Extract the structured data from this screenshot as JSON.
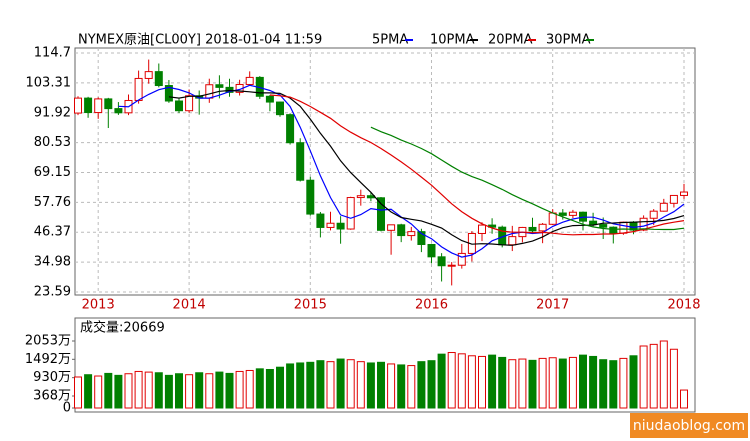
{
  "chart_data": [
    {
      "type": "candlestick",
      "title": "NYMEX原油[CL00Y] 2018-01-04 11:59",
      "categories": [
        null,
        null,
        "2013",
        null,
        null,
        null,
        null,
        null,
        null,
        null,
        null,
        "2014",
        null,
        null,
        null,
        null,
        null,
        null,
        null,
        null,
        null,
        null,
        null,
        "2015",
        null,
        null,
        null,
        null,
        null,
        null,
        null,
        null,
        null,
        null,
        null,
        "2016",
        null,
        null,
        null,
        null,
        null,
        null,
        null,
        null,
        null,
        null,
        null,
        "2017",
        null,
        null,
        null,
        null,
        null,
        null,
        null,
        null,
        null,
        null,
        null,
        null,
        "2018"
      ],
      "open": [
        91.8,
        97.5,
        92.0,
        97.2,
        93.5,
        91.9,
        96.6,
        105.0,
        107.6,
        102.3,
        96.4,
        92.7,
        98.4,
        97.5,
        102.6,
        101.6,
        99.7,
        102.7,
        105.4,
        98.2,
        96.0,
        91.2,
        80.5,
        66.2,
        53.3,
        48.2,
        49.8,
        47.6,
        59.6,
        60.3,
        59.5,
        47.1,
        49.2,
        45.1,
        46.6,
        41.7,
        37.0,
        33.6,
        33.8,
        38.3,
        45.9,
        49.1,
        48.3,
        41.6,
        44.7,
        48.2,
        46.9,
        49.4,
        53.7,
        52.8,
        54.0,
        50.6,
        49.3,
        48.3,
        46.0,
        50.2,
        47.2,
        51.7,
        54.4,
        57.4,
        60.4
      ],
      "high": [
        98.2,
        98.0,
        97.8,
        97.6,
        96.0,
        98.9,
        108.0,
        112.2,
        110.7,
        104.4,
        97.3,
        100.8,
        100.4,
        104.9,
        106.2,
        104.9,
        104.5,
        107.7,
        105.9,
        98.7,
        96.2,
        91.7,
        82.2,
        67.5,
        54.1,
        54.2,
        52.5,
        59.9,
        62.6,
        61.6,
        59.8,
        49.3,
        49.6,
        48.4,
        47.7,
        42.0,
        38.4,
        35.0,
        41.9,
        46.8,
        50.2,
        51.7,
        48.9,
        48.8,
        48.4,
        51.9,
        49.9,
        55.2,
        55.2,
        54.9,
        54.3,
        53.8,
        52.0,
        48.6,
        50.4,
        50.6,
        52.8,
        55.2,
        59.1,
        60.5,
        64.8
      ],
      "low": [
        91.0,
        90.0,
        89.6,
        86.1,
        91.1,
        91.0,
        95.4,
        103.0,
        101.6,
        95.7,
        91.8,
        91.9,
        91.2,
        95.7,
        97.4,
        98.0,
        98.5,
        102.2,
        97.2,
        92.5,
        90.4,
        79.8,
        65.7,
        52.7,
        44.4,
        47.1,
        42.0,
        47.3,
        56.5,
        58.2,
        46.7,
        37.8,
        42.6,
        43.2,
        38.8,
        34.5,
        27.6,
        26.1,
        32.5,
        35.2,
        43.0,
        45.8,
        40.6,
        39.2,
        42.5,
        46.0,
        42.2,
        49.1,
        51.2,
        51.8,
        47.1,
        48.2,
        43.8,
        42.1,
        45.4,
        45.6,
        46.8,
        49.1,
        54.2,
        55.8,
        59.1
      ],
      "close": [
        97.5,
        92.0,
        97.2,
        93.5,
        91.9,
        96.6,
        105.0,
        107.6,
        102.3,
        96.4,
        92.7,
        98.4,
        97.5,
        102.6,
        101.6,
        99.7,
        102.7,
        105.4,
        98.2,
        96.0,
        91.2,
        80.5,
        66.2,
        53.3,
        48.2,
        49.8,
        47.6,
        59.6,
        60.3,
        59.5,
        47.1,
        49.2,
        45.1,
        46.6,
        41.7,
        37.0,
        33.6,
        33.8,
        38.3,
        45.9,
        49.1,
        48.3,
        41.6,
        44.7,
        48.2,
        46.9,
        49.4,
        53.7,
        52.8,
        54.0,
        50.6,
        49.3,
        48.3,
        46.0,
        50.2,
        47.2,
        51.7,
        54.4,
        57.4,
        60.4,
        61.7
      ],
      "up_color": "#e00000",
      "down_color": "#008000",
      "series": [
        {
          "name": "5PMA",
          "color": "#0000ff",
          "values": [
            null,
            null,
            null,
            null,
            94.4,
            94.2,
            96.8,
            98.9,
            100.7,
            101.6,
            100.8,
            99.5,
            97.5,
            97.5,
            98.6,
            100.0,
            100.8,
            102.4,
            101.5,
            100.4,
            98.7,
            94.3,
            86.4,
            77.4,
            67.9,
            59.6,
            53.0,
            51.7,
            53.1,
            55.4,
            54.8,
            55.1,
            52.2,
            49.5,
            45.9,
            43.9,
            40.8,
            38.5,
            36.9,
            37.7,
            40.1,
            43.1,
            44.6,
            45.9,
            46.4,
            45.9,
            46.2,
            48.6,
            50.2,
            51.4,
            52.1,
            52.1,
            51.0,
            49.6,
            48.9,
            48.2,
            48.7,
            49.9,
            52.2,
            54.2,
            57.1
          ]
        },
        {
          "name": "10PMA",
          "color": "#000000",
          "values": [
            null,
            null,
            null,
            null,
            null,
            null,
            null,
            null,
            null,
            98.0,
            97.5,
            98.2,
            98.2,
            99.1,
            100.1,
            100.4,
            100.2,
            99.9,
            99.5,
            99.5,
            99.3,
            97.5,
            94.4,
            89.5,
            84.1,
            79.2,
            73.6,
            69.1,
            65.3,
            61.6,
            57.2,
            54.1,
            52.0,
            51.3,
            50.7,
            49.4,
            48.0,
            45.4,
            43.2,
            41.8,
            42.0,
            41.9,
            41.6,
            41.4,
            42.1,
            43.0,
            44.6,
            46.6,
            48.1,
            48.9,
            49.0,
            49.1,
            49.8,
            49.9,
            50.1,
            50.2,
            50.4,
            50.5,
            50.9,
            51.6,
            52.7
          ]
        },
        {
          "name": "20PMA",
          "color": "#e00000",
          "values": [
            null,
            null,
            null,
            null,
            null,
            null,
            null,
            null,
            null,
            null,
            null,
            null,
            null,
            null,
            null,
            null,
            null,
            null,
            null,
            98.7,
            98.4,
            97.9,
            96.3,
            94.3,
            92.1,
            89.8,
            86.9,
            84.5,
            82.4,
            80.6,
            78.3,
            75.8,
            73.2,
            70.4,
            67.4,
            64.3,
            60.8,
            57.2,
            54.2,
            51.7,
            49.6,
            48.0,
            46.8,
            46.4,
            46.4,
            46.2,
            46.3,
            46.0,
            45.6,
            45.4,
            45.5,
            45.5,
            45.7,
            45.7,
            46.1,
            46.6,
            47.5,
            48.5,
            49.5,
            50.2,
            50.8
          ]
        },
        {
          "name": "30PMA",
          "color": "#008000",
          "values": [
            null,
            null,
            null,
            null,
            null,
            null,
            null,
            null,
            null,
            null,
            null,
            null,
            null,
            null,
            null,
            null,
            null,
            null,
            null,
            null,
            null,
            null,
            null,
            null,
            null,
            null,
            null,
            null,
            null,
            86.4,
            84.7,
            83.3,
            81.5,
            80.0,
            78.3,
            76.3,
            73.9,
            71.5,
            69.3,
            67.6,
            66.2,
            64.5,
            62.7,
            60.7,
            58.9,
            57.2,
            55.4,
            53.7,
            52.2,
            50.8,
            49.4,
            48.4,
            47.8,
            47.5,
            47.6,
            47.5,
            47.7,
            47.5,
            47.4,
            47.4,
            47.9
          ]
        }
      ],
      "ylim": [
        23.59,
        114.7
      ],
      "yticks": [
        23.59,
        34.98,
        46.37,
        57.76,
        69.15,
        80.53,
        91.92,
        103.31,
        114.7
      ],
      "grid": true
    },
    {
      "type": "bar",
      "title": "成交量:20669",
      "values": [
        950,
        1020,
        980,
        1060,
        1000,
        1050,
        1120,
        1100,
        1080,
        1000,
        1050,
        1020,
        1080,
        1050,
        1100,
        1060,
        1120,
        1150,
        1200,
        1180,
        1250,
        1350,
        1380,
        1400,
        1450,
        1420,
        1500,
        1480,
        1420,
        1380,
        1400,
        1350,
        1320,
        1300,
        1420,
        1450,
        1650,
        1700,
        1660,
        1600,
        1580,
        1620,
        1550,
        1480,
        1500,
        1460,
        1520,
        1540,
        1500,
        1550,
        1620,
        1580,
        1480,
        1450,
        1520,
        1600,
        1900,
        1950,
        2053,
        1800,
        550
      ],
      "ylim": [
        0,
        2053
      ],
      "yticks": [
        0,
        {
          "value": 368,
          "label": "368万"
        },
        {
          "value": 930,
          "label": "930万"
        },
        {
          "value": 1492,
          "label": "1492万"
        },
        {
          "value": 2053,
          "label": "2053万"
        }
      ]
    }
  ],
  "watermark": "niudaoblog.com"
}
